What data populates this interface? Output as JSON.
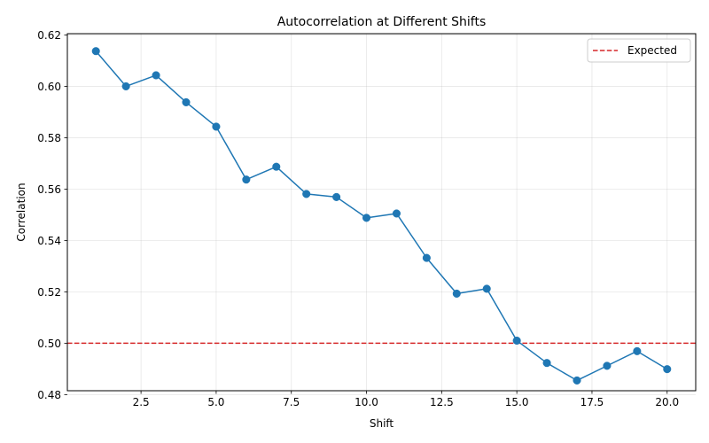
{
  "chart_data": {
    "type": "line",
    "title": "Autocorrelation at Different Shifts",
    "xlabel": "Shift",
    "ylabel": "Correlation",
    "xlim": [
      0.05,
      20.95
    ],
    "ylim": [
      0.4815,
      0.6205
    ],
    "xticks": [
      2.5,
      5.0,
      7.5,
      10.0,
      12.5,
      15.0,
      17.5,
      20.0
    ],
    "xtick_labels": [
      "2.5",
      "5.0",
      "7.5",
      "10.0",
      "12.5",
      "15.0",
      "17.5",
      "20.0"
    ],
    "yticks": [
      0.48,
      0.5,
      0.52,
      0.54,
      0.56,
      0.58,
      0.6,
      0.62
    ],
    "ytick_labels": [
      "0.48",
      "0.50",
      "0.52",
      "0.54",
      "0.56",
      "0.58",
      "0.60",
      "0.62"
    ],
    "grid": true,
    "legend_position": "top-right",
    "series": [
      {
        "x": [
          1,
          2,
          3,
          4,
          5,
          6,
          7,
          8,
          9,
          10,
          11,
          12,
          13,
          14,
          15,
          16,
          17,
          18,
          19,
          20
        ],
        "values": [
          0.6137,
          0.6,
          0.6043,
          0.5938,
          0.5843,
          0.5637,
          0.5687,
          0.5581,
          0.5569,
          0.5488,
          0.5505,
          0.5332,
          0.5193,
          0.5212,
          0.501,
          0.4923,
          0.4855,
          0.4912,
          0.4969,
          0.4899
        ],
        "color": "#1f77b4",
        "marker": "circle"
      }
    ],
    "reference_lines": [
      {
        "name": "Expected",
        "y": 0.5,
        "color": "#d62728",
        "style": "dashed"
      }
    ]
  }
}
